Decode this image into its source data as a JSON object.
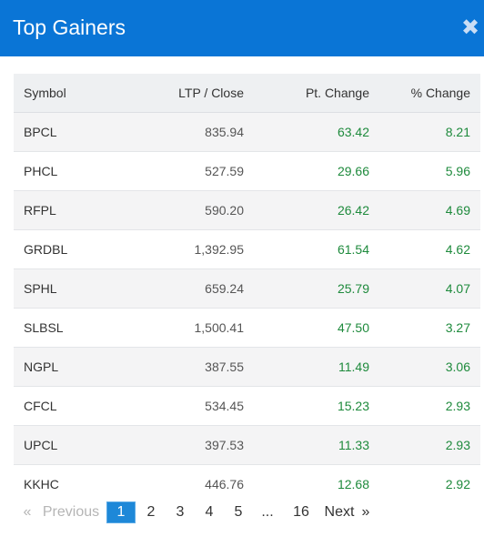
{
  "header": {
    "title": "Top Gainers",
    "close_glyph": "✖",
    "close_icon": "close-icon"
  },
  "table": {
    "columns": [
      "Symbol",
      "LTP / Close",
      "Pt. Change",
      "% Change"
    ],
    "rows": [
      [
        "BPCL",
        "835.94",
        "63.42",
        "8.21"
      ],
      [
        "PHCL",
        "527.59",
        "29.66",
        "5.96"
      ],
      [
        "RFPL",
        "590.20",
        "26.42",
        "4.69"
      ],
      [
        "GRDBL",
        "1,392.95",
        "61.54",
        "4.62"
      ],
      [
        "SPHL",
        "659.24",
        "25.79",
        "4.07"
      ],
      [
        "SLBSL",
        "1,500.41",
        "47.50",
        "3.27"
      ],
      [
        "NGPL",
        "387.55",
        "11.49",
        "3.06"
      ],
      [
        "CFCL",
        "534.45",
        "15.23",
        "2.93"
      ],
      [
        "UPCL",
        "397.53",
        "11.33",
        "2.93"
      ],
      [
        "KKHC",
        "446.76",
        "12.68",
        "2.92"
      ]
    ],
    "positive_color": "#1e8a3c"
  },
  "pagination": {
    "prev_arrow": "«",
    "prev_label": "Previous",
    "pages": [
      "1",
      "2",
      "3",
      "4",
      "5",
      "...",
      "16"
    ],
    "active_page": "1",
    "next_label": "Next",
    "next_arrow": "»"
  },
  "colors": {
    "header_bg": "#0a75d6",
    "active_page_bg": "#1e88d8"
  }
}
